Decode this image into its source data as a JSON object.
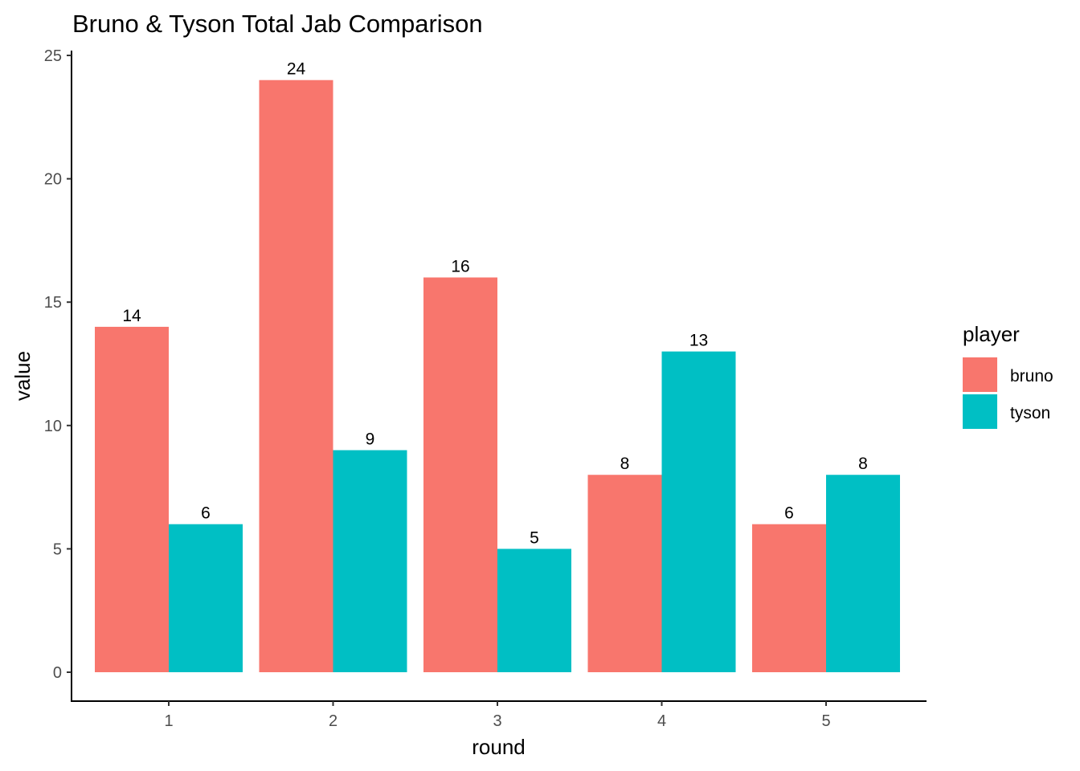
{
  "chart_data": {
    "type": "bar",
    "title": "Bruno & Tyson Total Jab Comparison",
    "xlabel": "round",
    "ylabel": "value",
    "categories": [
      "1",
      "2",
      "3",
      "4",
      "5"
    ],
    "ylim": [
      0,
      25
    ],
    "yticks": [
      0,
      5,
      10,
      15,
      20,
      25
    ],
    "grid": false,
    "legend": {
      "title": "player",
      "placement": "right"
    },
    "series": [
      {
        "name": "bruno",
        "color": "#F8766D",
        "values": [
          14,
          24,
          16,
          8,
          6
        ]
      },
      {
        "name": "tyson",
        "color": "#00BFC4",
        "values": [
          6,
          9,
          5,
          13,
          8
        ]
      }
    ]
  }
}
